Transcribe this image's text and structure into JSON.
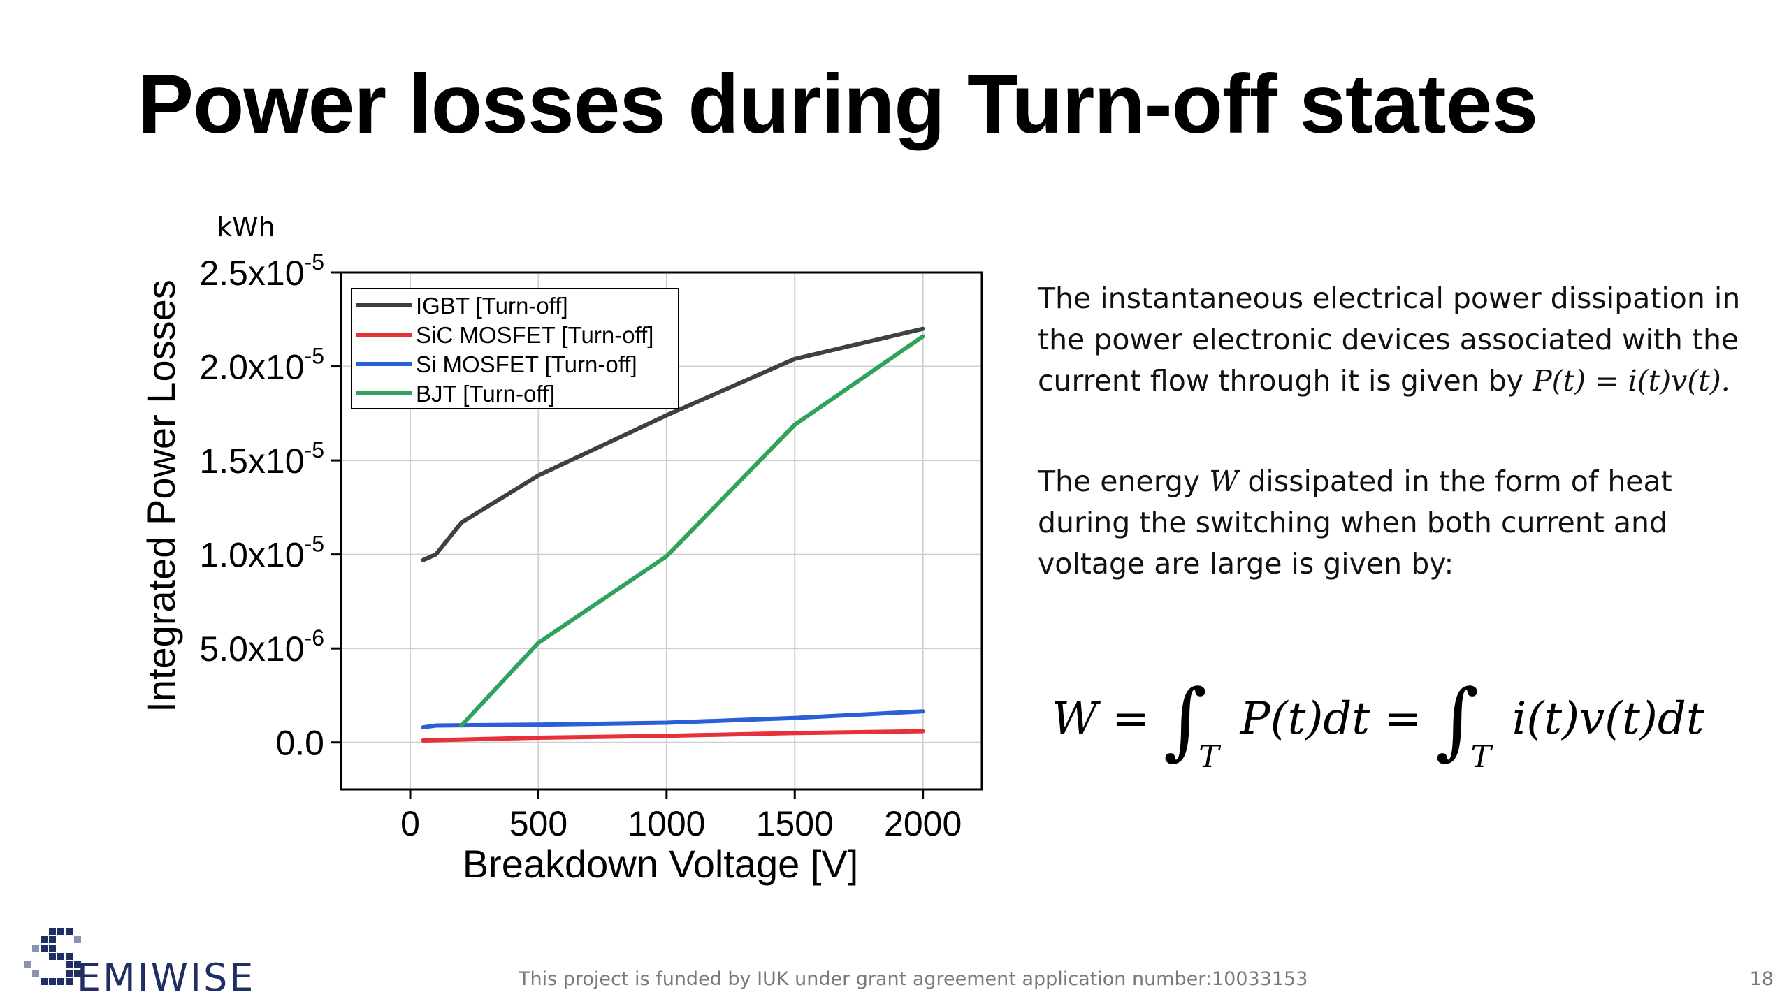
{
  "slide": {
    "title": "Power losses during Turn-off states",
    "page_number": "18",
    "footer": "This project is funded by IUK under grant agreement application number:10033153",
    "logo_text": "EMIWISE",
    "paragraph1_a": "The instantaneous electrical power dissipation in the power electronic devices associated with the current flow through it is given by ",
    "paragraph1_math": "P(t) = i(t)v(t).",
    "paragraph2_a": "The energy ",
    "paragraph2_w": "W",
    "paragraph2_b": " dissipated in the form of heat during the switching when both current and voltage are large is given by:",
    "formula_lhs": "W =",
    "formula_int": "∫",
    "formula_sub": "T",
    "formula_mid": "P(t)dt =",
    "formula_rhs": "i(t)v(t)dt"
  },
  "chart_data": {
    "type": "line",
    "unit_label": "kWh",
    "xlabel": "Breakdown Voltage [V]",
    "ylabel": "Integrated Power Losses",
    "xlim": [
      -270,
      2230
    ],
    "ylim": [
      -2.5e-06,
      2.5e-05
    ],
    "x_ticks": [
      0,
      500,
      1000,
      1500,
      2000
    ],
    "x_tick_labels": [
      "0",
      "500",
      "1000",
      "1500",
      "2000"
    ],
    "y_ticks": [
      0,
      5e-06,
      1e-05,
      1.5e-05,
      2e-05,
      2.5e-05
    ],
    "y_tick_mantissa": [
      "0.0",
      "5.0x10",
      "1.0x10",
      "1.5x10",
      "2.0x10",
      "2.5x10"
    ],
    "y_tick_exponent": [
      "",
      "-6",
      "-5",
      "-5",
      "-5",
      "-5"
    ],
    "grid": true,
    "legend_position": "top-left",
    "series": [
      {
        "name": "IGBT [Turn-off]",
        "color": "#404040",
        "x": [
          50,
          100,
          200,
          500,
          1000,
          1500,
          2000
        ],
        "y": [
          9.7e-06,
          1e-05,
          1.17e-05,
          1.42e-05,
          1.74e-05,
          2.04e-05,
          2.2e-05
        ]
      },
      {
        "name": "SiC MOSFET  [Turn-off]",
        "color": "#e8303a",
        "x": [
          50,
          500,
          1000,
          1500,
          2000
        ],
        "y": [
          1e-07,
          2.5e-07,
          3.5e-07,
          5e-07,
          6e-07
        ]
      },
      {
        "name": "Si MOSFET  [Turn-off]",
        "color": "#2a5fd8",
        "x": [
          50,
          100,
          500,
          1000,
          1500,
          2000
        ],
        "y": [
          8e-07,
          9e-07,
          9.5e-07,
          1.05e-06,
          1.3e-06,
          1.65e-06
        ]
      },
      {
        "name": "BJT  [Turn-off]",
        "color": "#2fa35b",
        "x": [
          200,
          500,
          1000,
          1500,
          2000
        ],
        "y": [
          9e-07,
          5.3e-06,
          9.9e-06,
          1.69e-05,
          2.16e-05
        ]
      }
    ]
  }
}
